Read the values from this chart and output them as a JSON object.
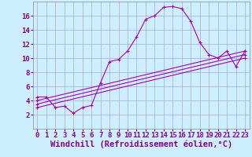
{
  "xlabel": "Windchill (Refroidissement éolien,°C)",
  "background_color": "#cceeff",
  "grid_color": "#aaaacc",
  "line_color": "#aa00aa",
  "xlim": [
    -0.5,
    23.5
  ],
  "ylim": [
    0,
    18
  ],
  "xticks": [
    0,
    1,
    2,
    3,
    4,
    5,
    6,
    7,
    8,
    9,
    10,
    11,
    12,
    13,
    14,
    15,
    16,
    17,
    18,
    19,
    20,
    21,
    22,
    23
  ],
  "yticks": [
    2,
    4,
    6,
    8,
    10,
    12,
    14,
    16
  ],
  "curve1_x": [
    0,
    1,
    2,
    3,
    4,
    5,
    6,
    7,
    8,
    9,
    10,
    11,
    12,
    13,
    14,
    15,
    16,
    17,
    18,
    19,
    20,
    21,
    22,
    23
  ],
  "curve1_y": [
    4.5,
    4.5,
    3.0,
    3.2,
    2.2,
    3.0,
    3.3,
    6.5,
    9.5,
    9.8,
    11.0,
    13.0,
    15.5,
    16.0,
    17.2,
    17.3,
    17.0,
    15.2,
    12.2,
    10.5,
    10.0,
    11.0,
    8.8,
    11.0
  ],
  "curve2_x": [
    0,
    23
  ],
  "curve2_y": [
    4.0,
    11.0
  ],
  "curve3_x": [
    0,
    23
  ],
  "curve3_y": [
    3.5,
    10.5
  ],
  "curve4_x": [
    0,
    23
  ],
  "curve4_y": [
    3.0,
    10.0
  ],
  "tick_fontsize": 6.5,
  "label_fontsize": 7.5
}
